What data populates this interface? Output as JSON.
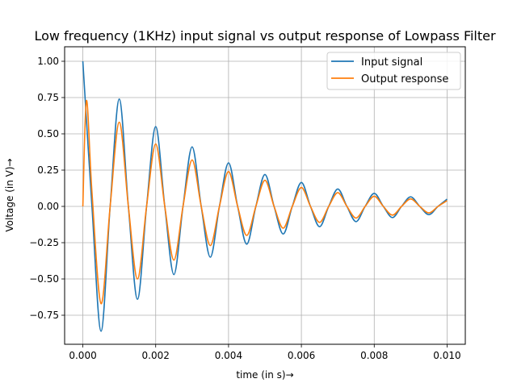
{
  "chart_data": {
    "type": "line",
    "title": "Low frequency (1KHz) input signal vs output response of Lowpass Filter",
    "xlabel": "time (in s)→",
    "ylabel": "Voltage (in V)→",
    "xlim": [
      -0.0005,
      0.0105
    ],
    "ylim": [
      -0.95,
      1.1
    ],
    "grid": true,
    "legend_position": "top-right",
    "x_ticks": [
      0.0,
      0.002,
      0.004,
      0.006,
      0.008,
      0.01
    ],
    "x_tick_labels": [
      "0.000",
      "0.002",
      "0.004",
      "0.006",
      "0.008",
      "0.010"
    ],
    "y_ticks": [
      -0.75,
      -0.5,
      -0.25,
      0.0,
      0.25,
      0.5,
      0.75,
      1.0
    ],
    "y_tick_labels": [
      "−0.75",
      "−0.50",
      "−0.25",
      "0.00",
      "0.25",
      "0.50",
      "0.75",
      "1.00"
    ],
    "series": [
      {
        "name": "Input signal",
        "color": "#1f77b4",
        "x": [
          0.0,
          0.00025,
          0.0005,
          0.00075,
          0.001,
          0.00125,
          0.0015,
          0.00175,
          0.002,
          0.00225,
          0.0025,
          0.00275,
          0.003,
          0.00325,
          0.0035,
          0.00375,
          0.004,
          0.00425,
          0.0045,
          0.00475,
          0.005,
          0.00525,
          0.0055,
          0.00575,
          0.006,
          0.00625,
          0.0065,
          0.00675,
          0.007,
          0.00725,
          0.0075,
          0.00775,
          0.008,
          0.00825,
          0.0085,
          0.00875,
          0.009,
          0.00925,
          0.0095,
          0.00975,
          0.01
        ],
        "y": [
          1.0,
          0.0,
          -0.86,
          0.0,
          0.74,
          0.0,
          -0.64,
          0.0,
          0.55,
          0.0,
          -0.47,
          0.0,
          0.41,
          0.0,
          -0.35,
          0.0,
          0.3,
          0.0,
          -0.26,
          0.0,
          0.22,
          0.0,
          -0.19,
          0.0,
          0.165,
          0.0,
          -0.14,
          0.0,
          0.12,
          0.0,
          -0.105,
          0.0,
          0.09,
          0.0,
          -0.077,
          0.0,
          0.066,
          0.0,
          -0.057,
          0.0,
          0.05
        ]
      },
      {
        "name": "Output response",
        "color": "#ff7f0e",
        "x": [
          0.0,
          0.0001,
          0.00025,
          0.0005,
          0.00075,
          0.001,
          0.00125,
          0.0015,
          0.00175,
          0.002,
          0.00225,
          0.0025,
          0.00275,
          0.003,
          0.00325,
          0.0035,
          0.00375,
          0.004,
          0.00425,
          0.0045,
          0.00475,
          0.005,
          0.00525,
          0.0055,
          0.00575,
          0.006,
          0.00625,
          0.0065,
          0.00675,
          0.007,
          0.00725,
          0.0075,
          0.00775,
          0.008,
          0.00825,
          0.0085,
          0.00875,
          0.009,
          0.00925,
          0.0095,
          0.00975,
          0.01
        ],
        "y": [
          0.0,
          0.73,
          0.1,
          -0.67,
          0.0,
          0.58,
          0.0,
          -0.5,
          0.0,
          0.43,
          0.0,
          -0.37,
          0.0,
          0.32,
          0.0,
          -0.27,
          0.0,
          0.24,
          0.0,
          -0.2,
          0.0,
          0.18,
          0.0,
          -0.15,
          0.0,
          0.13,
          0.0,
          -0.11,
          0.0,
          0.095,
          0.0,
          -0.08,
          0.0,
          0.07,
          0.0,
          -0.06,
          0.0,
          0.052,
          0.0,
          -0.045,
          0.0,
          0.04
        ]
      }
    ]
  }
}
